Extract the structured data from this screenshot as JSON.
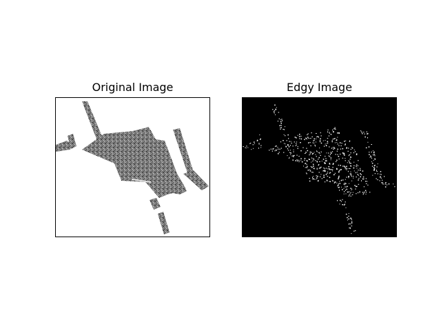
{
  "figure": {
    "panels": [
      {
        "title": "Original Image",
        "background": "#ffffff",
        "fill": "#808080",
        "speckle": "#1a1a1a"
      },
      {
        "title": "Edgy Image",
        "background": "#000000",
        "edge_color": "#ffffff"
      }
    ]
  }
}
